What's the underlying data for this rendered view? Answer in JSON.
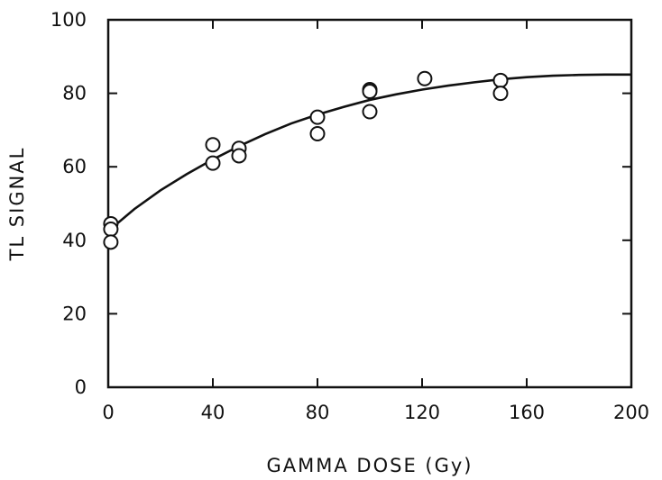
{
  "chart_data": {
    "type": "scatter",
    "title": "",
    "xlabel": "GAMMA DOSE (Gy)",
    "ylabel": "TL SIGNAL",
    "xlim": [
      0,
      200
    ],
    "ylim": [
      0,
      100
    ],
    "x_ticks": [
      0,
      40,
      80,
      120,
      160,
      200
    ],
    "y_ticks": [
      0,
      20,
      40,
      60,
      80,
      100
    ],
    "grid": false,
    "legend": "none",
    "series": [
      {
        "type": "scatter",
        "marker": "open-circle",
        "points": [
          [
            1,
            44.5
          ],
          [
            1,
            43
          ],
          [
            1,
            39.5
          ],
          [
            40,
            66
          ],
          [
            40,
            61
          ],
          [
            50,
            65
          ],
          [
            50,
            63
          ],
          [
            80,
            73.5
          ],
          [
            80,
            69
          ],
          [
            100,
            81
          ],
          [
            100,
            80.5
          ],
          [
            100,
            75
          ],
          [
            121,
            84
          ],
          [
            150,
            83.5
          ],
          [
            150,
            80
          ]
        ]
      },
      {
        "type": "line",
        "style": "fitted-curve",
        "x": [
          0,
          10,
          20,
          30,
          40,
          50,
          60,
          70,
          80,
          90,
          100,
          110,
          120,
          130,
          140,
          150,
          160,
          170,
          180,
          190,
          200
        ],
        "y": [
          42.5,
          48.5,
          53.6,
          58.0,
          62.0,
          65.6,
          68.9,
          71.8,
          74.2,
          76.3,
          78.2,
          79.7,
          81.0,
          82.1,
          83.0,
          83.8,
          84.4,
          84.8,
          85.0,
          85.1,
          85.1
        ]
      }
    ]
  }
}
